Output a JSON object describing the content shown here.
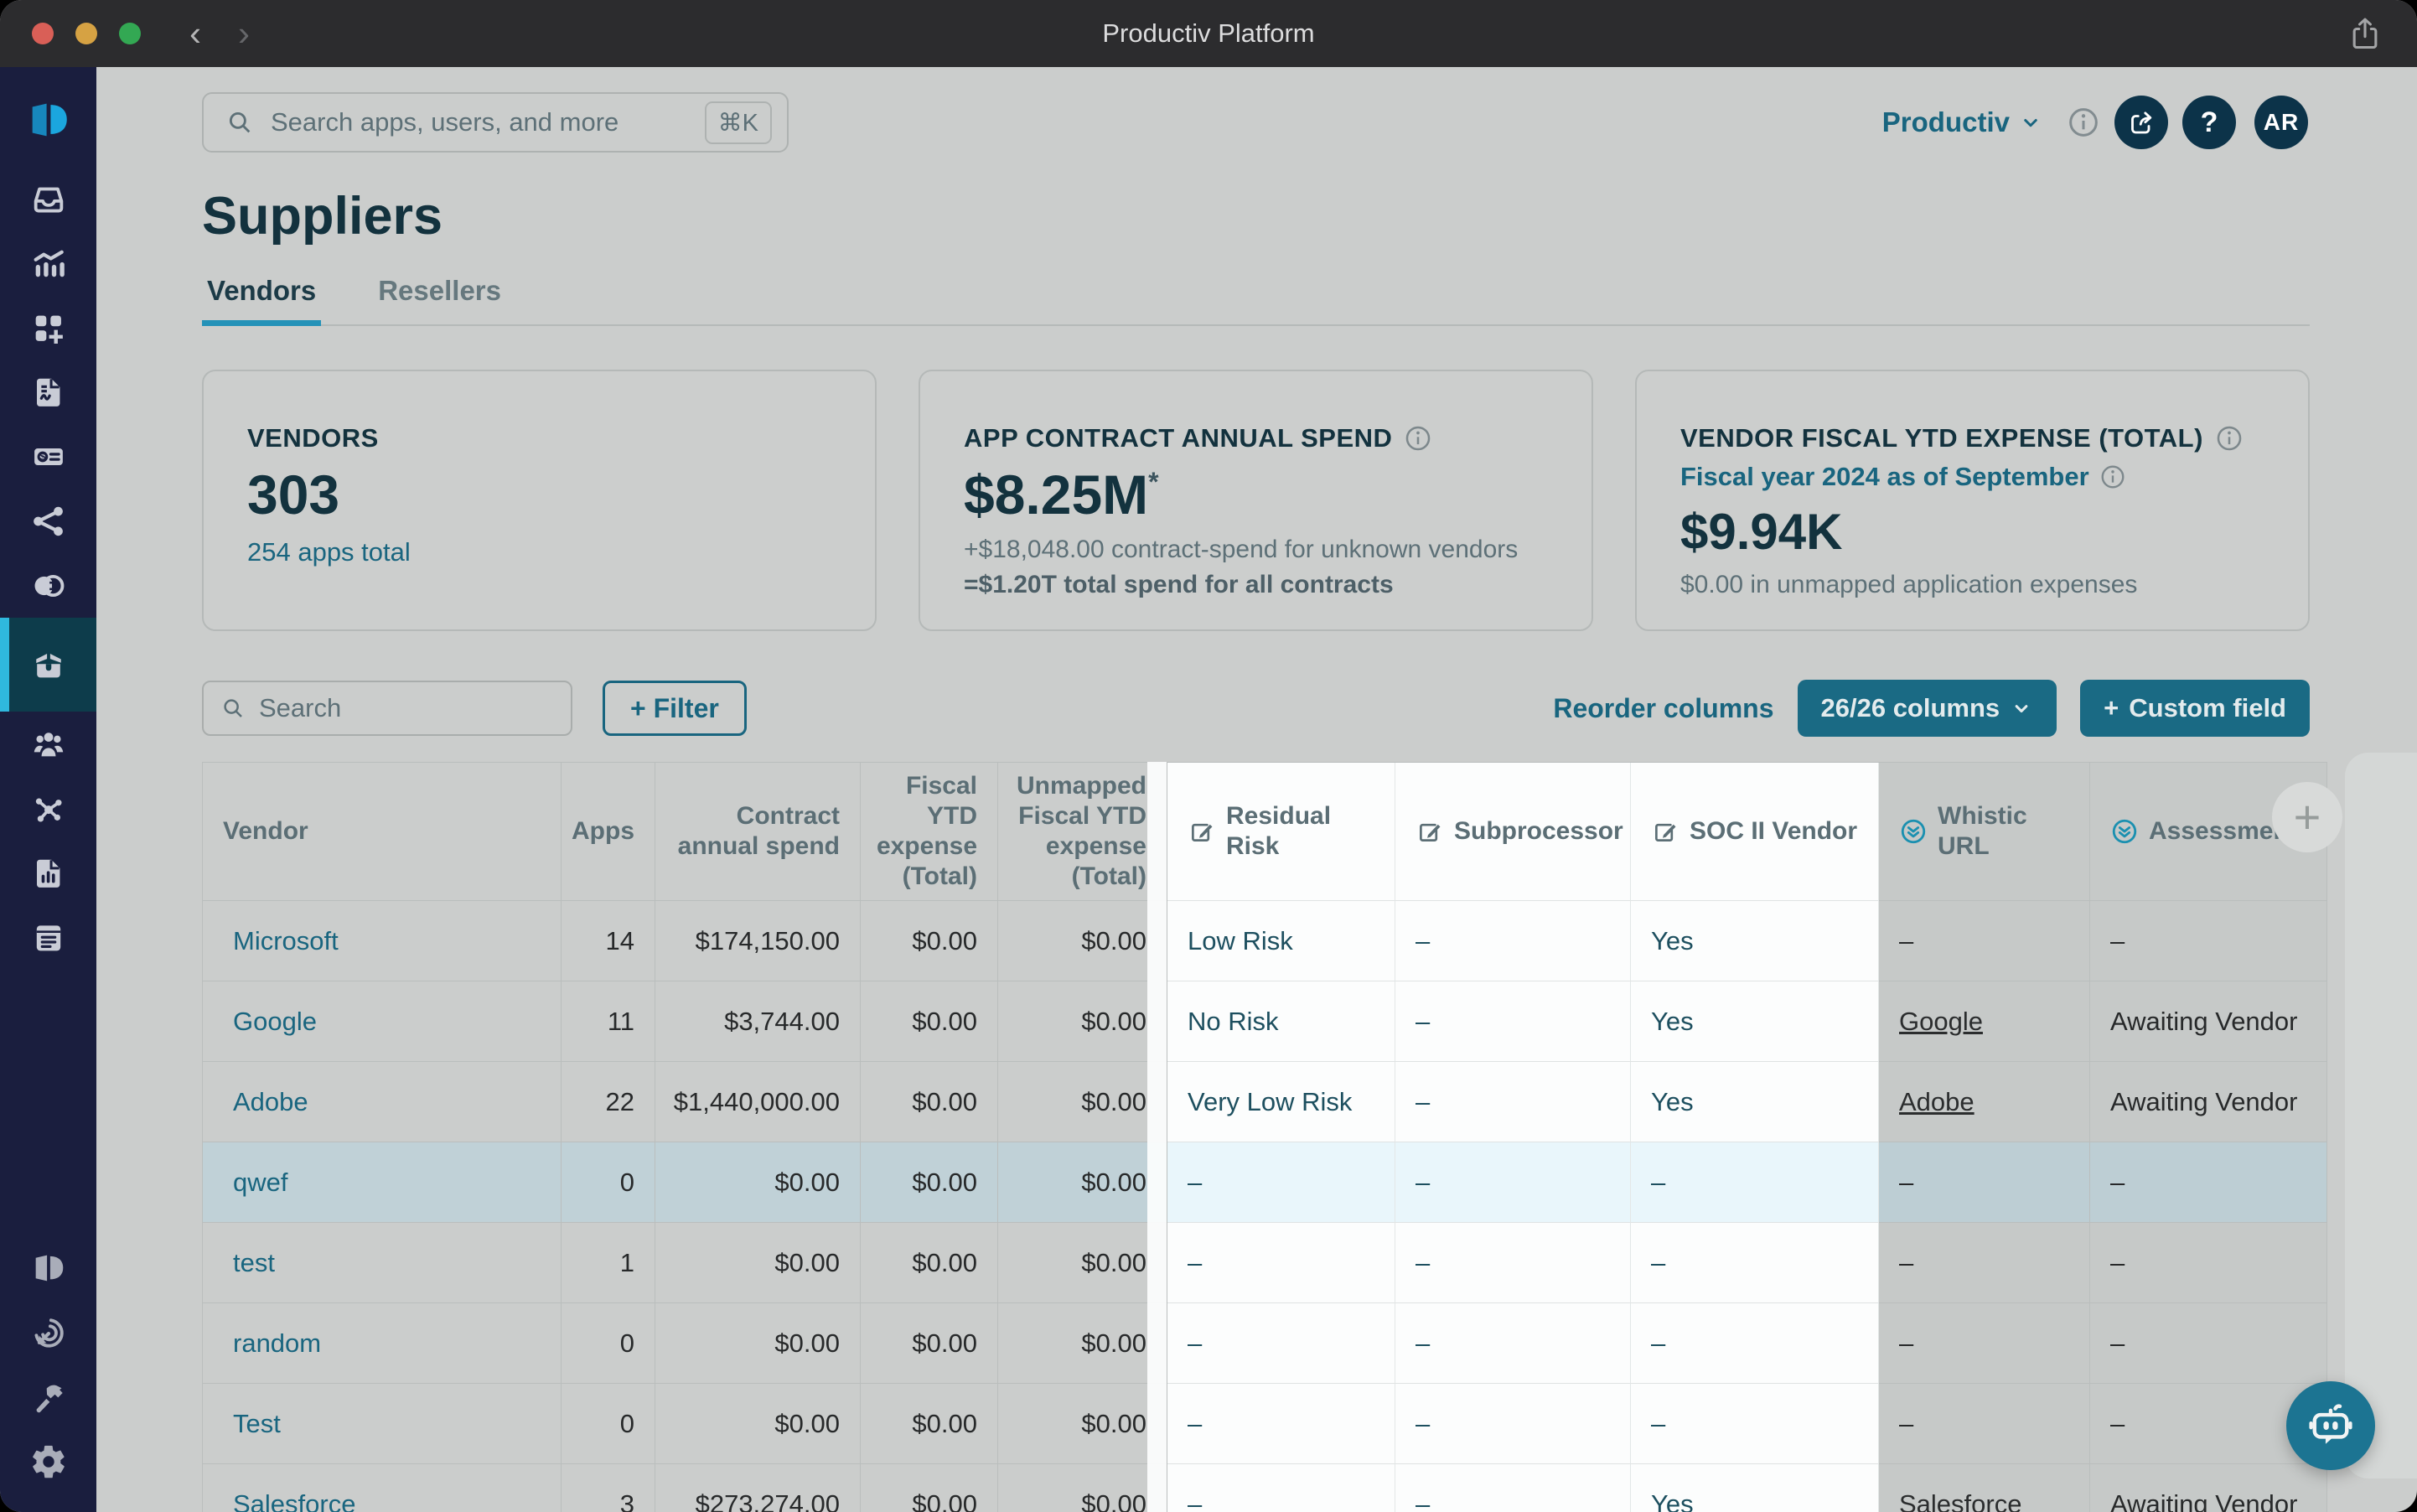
{
  "colors": {
    "brand_teal": "#19657f",
    "navy": "#0c3349",
    "sidebar_navy": "#1a1e3e",
    "accent_cyan": "#2fb8de",
    "tab_underline": "#2492b8"
  },
  "titlebar": {
    "title": "Productiv Platform",
    "back_icon": "chevron-left",
    "forward_icon": "chevron-right",
    "share_icon": "macos-share"
  },
  "sidebar": {
    "logo_icon": "productiv-logo",
    "items": [
      {
        "icon": "inbox"
      },
      {
        "icon": "analytics"
      },
      {
        "icon": "apps-add"
      },
      {
        "icon": "report-doc"
      },
      {
        "icon": "invoice"
      },
      {
        "icon": "share-nodes"
      },
      {
        "icon": "compare-circles"
      },
      {
        "icon": "package",
        "active": true
      },
      {
        "icon": "team"
      },
      {
        "icon": "integrations"
      },
      {
        "icon": "doc-chart"
      },
      {
        "icon": "notes"
      }
    ],
    "bottom_items": [
      {
        "icon": "productiv-mark"
      },
      {
        "icon": "engagement-target"
      },
      {
        "icon": "hammer"
      },
      {
        "icon": "settings-gear"
      }
    ]
  },
  "topbar": {
    "search_placeholder": "Search apps, users, and more",
    "search_shortcut": "⌘K",
    "org_name": "Productiv",
    "help_label": "?",
    "avatar_initials": "AR"
  },
  "page": {
    "title": "Suppliers",
    "tabs": [
      {
        "label": "Vendors",
        "active": true
      },
      {
        "label": "Resellers",
        "active": false
      }
    ]
  },
  "cards": {
    "vendors": {
      "label": "VENDORS",
      "value": "303",
      "link": "254 apps total"
    },
    "spend": {
      "label": "APP CONTRACT ANNUAL SPEND",
      "value": "$8.25M",
      "footnote_marker": "*",
      "line1": "+$18,048.00 contract-spend for unknown vendors",
      "line2": "=$1.20T total spend for all contracts"
    },
    "ytd": {
      "label": "VENDOR FISCAL YTD EXPENSE (TOTAL)",
      "subtitle": "Fiscal year 2024 as of September",
      "value": "$9.94K",
      "line1": "$0.00 in unmapped application expenses"
    }
  },
  "toolbar": {
    "search_placeholder": "Search",
    "filter_label": "+ Filter",
    "reorder_label": "Reorder columns",
    "columns_label": "26/26 columns",
    "custom_field_label": "Custom field",
    "add_column_label": "+"
  },
  "table": {
    "columns": [
      {
        "label": "Vendor",
        "field": "vendor",
        "type": "vendor",
        "align": "left",
        "group": "base"
      },
      {
        "label": "Apps",
        "field": "apps",
        "type": "num",
        "align": "right",
        "group": "base"
      },
      {
        "label": "Contract annual spend",
        "field": "contract",
        "type": "num",
        "align": "right",
        "group": "base"
      },
      {
        "label": "Fiscal YTD expense (Total)",
        "field": "fiscal",
        "type": "num",
        "align": "right",
        "group": "base"
      },
      {
        "label": "Unmapped Fiscal YTD expense (Total)",
        "field": "unmapped",
        "type": "num",
        "align": "right",
        "group": "base"
      },
      {
        "label": "Residual Risk",
        "field": "residual",
        "type": "teal",
        "align": "left",
        "icon": "edit",
        "group": "highlight"
      },
      {
        "label": "Subprocessor",
        "field": "subprocessor",
        "type": "teal",
        "align": "left",
        "icon": "edit",
        "group": "highlight"
      },
      {
        "label": "SOC II Vendor",
        "field": "soc2",
        "type": "teal",
        "align": "left",
        "icon": "edit",
        "group": "highlight"
      },
      {
        "label": "Whistic URL",
        "field": "whistic",
        "type": "dark-link",
        "align": "left",
        "icon": "whistic",
        "group": "shaded"
      },
      {
        "label": "Assessment",
        "field": "assessment",
        "type": "dark",
        "align": "left",
        "icon": "whistic",
        "group": "shaded"
      }
    ],
    "rows": [
      {
        "vendor": "Microsoft",
        "apps": "14",
        "contract": "$174,150.00",
        "fiscal": "$0.00",
        "unmapped": "$0.00",
        "residual": "Low Risk",
        "subprocessor": "–",
        "soc2": "Yes",
        "whistic": "–",
        "whistic_link": false,
        "assessment": "–",
        "selected": false
      },
      {
        "vendor": "Google",
        "apps": "11",
        "contract": "$3,744.00",
        "fiscal": "$0.00",
        "unmapped": "$0.00",
        "residual": "No Risk",
        "subprocessor": "–",
        "soc2": "Yes",
        "whistic": "Google",
        "whistic_link": true,
        "assessment": "Awaiting Vendor",
        "selected": false
      },
      {
        "vendor": "Adobe",
        "apps": "22",
        "contract": "$1,440,000.00",
        "fiscal": "$0.00",
        "unmapped": "$0.00",
        "residual": "Very Low Risk",
        "subprocessor": "–",
        "soc2": "Yes",
        "whistic": "Adobe",
        "whistic_link": true,
        "assessment": "Awaiting Vendor",
        "selected": false
      },
      {
        "vendor": "qwef",
        "apps": "0",
        "contract": "$0.00",
        "fiscal": "$0.00",
        "unmapped": "$0.00",
        "residual": "–",
        "subprocessor": "–",
        "soc2": "–",
        "whistic": "–",
        "whistic_link": false,
        "assessment": "–",
        "selected": true
      },
      {
        "vendor": "test",
        "apps": "1",
        "contract": "$0.00",
        "fiscal": "$0.00",
        "unmapped": "$0.00",
        "residual": "–",
        "subprocessor": "–",
        "soc2": "–",
        "whistic": "–",
        "whistic_link": false,
        "assessment": "–",
        "selected": false
      },
      {
        "vendor": "random",
        "apps": "0",
        "contract": "$0.00",
        "fiscal": "$0.00",
        "unmapped": "$0.00",
        "residual": "–",
        "subprocessor": "–",
        "soc2": "–",
        "whistic": "–",
        "whistic_link": false,
        "assessment": "–",
        "selected": false
      },
      {
        "vendor": "Test",
        "apps": "0",
        "contract": "$0.00",
        "fiscal": "$0.00",
        "unmapped": "$0.00",
        "residual": "–",
        "subprocessor": "–",
        "soc2": "–",
        "whistic": "–",
        "whistic_link": false,
        "assessment": "–",
        "selected": false
      },
      {
        "vendor": "Salesforce",
        "apps": "3",
        "contract": "$273,274.00",
        "fiscal": "$0.00",
        "unmapped": "$0.00",
        "residual": "–",
        "subprocessor": "–",
        "soc2": "Yes",
        "whistic": "Salesforce",
        "whistic_link": true,
        "assessment": "Awaiting Vendor",
        "selected": false
      }
    ]
  },
  "fab": {
    "icon": "robot-chat"
  }
}
